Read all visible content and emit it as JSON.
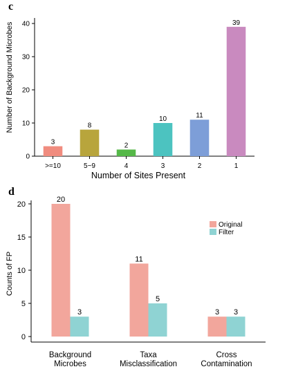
{
  "chart_data": [
    {
      "panel": "c",
      "type": "bar",
      "xlabel": "Number of Sites Present",
      "ylabel": "Number of Background Microbes",
      "categories": [
        ">=10",
        "5~9",
        "4",
        "3",
        "2",
        "1"
      ],
      "values": [
        3,
        8,
        2,
        10,
        11,
        39
      ],
      "colors": [
        "#f08c7f",
        "#b8a53c",
        "#55b848",
        "#4cc3c0",
        "#7d9ed8",
        "#c98abf"
      ],
      "ylim": [
        0,
        40
      ],
      "yticks": [
        0,
        10,
        20,
        30,
        40
      ],
      "data_labels": true,
      "grid": false
    },
    {
      "panel": "d",
      "type": "bar",
      "xlabel": "",
      "ylabel": "Counts of FP",
      "categories": [
        "Background\nMicrobes",
        "Taxa\nMisclassification",
        "Cross\nContamination"
      ],
      "series": [
        {
          "name": "Original",
          "values": [
            20,
            11,
            3
          ],
          "color": "#f2a69c"
        },
        {
          "name": "Filter",
          "values": [
            3,
            5,
            3
          ],
          "color": "#8fd3d3"
        }
      ],
      "ylim": [
        0,
        20
      ],
      "yticks": [
        0,
        5,
        10,
        15,
        20
      ],
      "legend": "top-right",
      "data_labels": true,
      "grid": false
    }
  ]
}
